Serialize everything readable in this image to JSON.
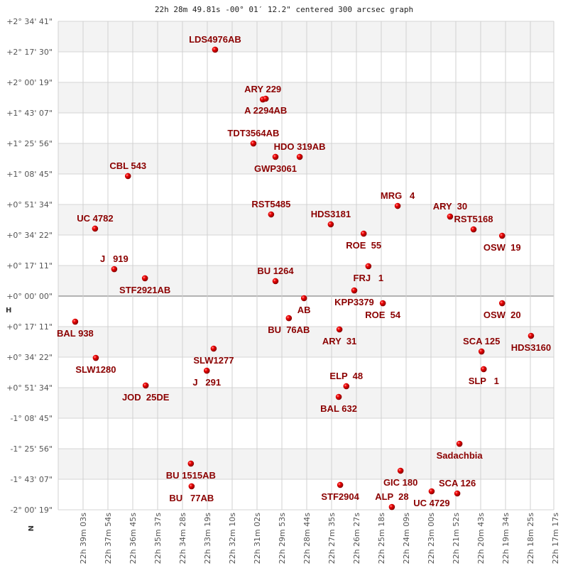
{
  "chart_data": {
    "type": "scatter",
    "title": "22h 28m 49.81s -00° 01′ 12.2\" centered 300 arcsec graph",
    "x_ticks": [
      "22h 39m 03s",
      "22h 37m 54s",
      "22h 36m 45s",
      "22h 35m 37s",
      "22h 34m 28s",
      "22h 33m 19s",
      "22h 32m 10s",
      "22h 31m 02s",
      "22h 29m 53s",
      "22h 28m 44s",
      "22h 27m 35s",
      "22h 26m 27s",
      "22h 25m 18s",
      "22h 24m 09s",
      "22h 23m 00s",
      "22h 21m 52s",
      "22h 20m 43s",
      "22h 19m 34s",
      "22h 18m 25s",
      "22h 17m 17s"
    ],
    "y_ticks": [
      "+2° 34' 41\"",
      "+2° 17' 30\"",
      "+2° 00' 19\"",
      "+1° 43' 07\"",
      "+1° 25' 56\"",
      "+1° 08' 45\"",
      "+0° 51' 34\"",
      "+0° 34' 22\"",
      "+0° 17' 11\"",
      "+0° 00' 00\"",
      "+0° 17' 11\"",
      "+0° 34' 22\"",
      "+0° 51' 34\"",
      "-1° 08' 45\"",
      "-1° 25' 56\"",
      "-1° 43' 07\"",
      "-2° 00' 19\""
    ],
    "grid": true,
    "banded_rows": true,
    "marker_color": "#e00000",
    "label_color": "#8b0000",
    "orientation_marks": [
      "H",
      "N"
    ],
    "stars": [
      {
        "name": "LDS4976AB",
        "ra": "22:32:58",
        "dec": 2.312,
        "label": "above"
      },
      {
        "name": "ARY 229",
        "ra": "22:30:46",
        "dec": 1.845,
        "label": "above"
      },
      {
        "name": "A 2294AB",
        "ra": "22:30:38",
        "dec": 1.852,
        "label": "above"
      },
      {
        "name": "TDT3564AB",
        "ra": "22:31:12",
        "dec": 1.432,
        "label": "above"
      },
      {
        "name": "GWP3061",
        "ra": "22:30:11",
        "dec": 1.306,
        "label": "above"
      },
      {
        "name": "HDO 319AB",
        "ra": "22:29:04",
        "dec": 1.306,
        "label": "above"
      },
      {
        "name": "CBL 543",
        "ra": "22:36:59",
        "dec": 1.126,
        "label": "above"
      },
      {
        "name": "MRG   4",
        "ra": "22:24:33",
        "dec": 0.846,
        "label": "above"
      },
      {
        "name": "UC 4782",
        "ra": "22:38:30",
        "dec": 0.633,
        "label": "above"
      },
      {
        "name": "RST5485",
        "ra": "22:30:23",
        "dec": 0.766,
        "label": "above"
      },
      {
        "name": "HDS3181",
        "ra": "22:27:38",
        "dec": 0.673,
        "label": "above"
      },
      {
        "name": "ROE  55",
        "ra": "22:26:07",
        "dec": 0.586,
        "label": "above"
      },
      {
        "name": "ARY  30",
        "ra": "22:22:08",
        "dec": 0.746,
        "label": "above"
      },
      {
        "name": "RST5168",
        "ra": "22:21:03",
        "dec": 0.626,
        "label": "above"
      },
      {
        "name": "OSW  19",
        "ra": "22:19:44",
        "dec": 0.566,
        "label": "above"
      },
      {
        "name": "FRJ   1",
        "ra": "22:25:54",
        "dec": 0.28,
        "label": "above"
      },
      {
        "name": "J   919",
        "ra": "22:37:37",
        "dec": 0.253,
        "label": "above"
      },
      {
        "name": "STF2921AB",
        "ra": "22:36:12",
        "dec": 0.167,
        "label": "above"
      },
      {
        "name": "BU 1264",
        "ra": "22:30:11",
        "dec": 0.14,
        "label": "above"
      },
      {
        "name": "KPP3379",
        "ra": "22:26:33",
        "dec": 0.053,
        "label": "above"
      },
      {
        "name": "AB",
        "ra": "22:28:52",
        "dec": -0.02,
        "label": "below"
      },
      {
        "name": "ROE  54",
        "ra": "22:25:14",
        "dec": -0.067,
        "label": "below"
      },
      {
        "name": "OSW  20",
        "ra": "22:19:44",
        "dec": -0.067,
        "label": "below"
      },
      {
        "name": "BAL 938",
        "ra": "22:39:25",
        "dec": -0.24,
        "label": "below"
      },
      {
        "name": "BU  76AB",
        "ra": "22:29:34",
        "dec": -0.207,
        "label": "below"
      },
      {
        "name": "ARY  31",
        "ra": "22:27:14",
        "dec": -0.313,
        "label": "below"
      },
      {
        "name": "HDS3160",
        "ra": "22:18:24",
        "dec": -0.373,
        "label": "below"
      },
      {
        "name": "SLW1280",
        "ra": "22:38:28",
        "dec": -0.58,
        "label": "below"
      },
      {
        "name": "SCA 125",
        "ra": "22:20:41",
        "dec": -0.52,
        "label": "below"
      },
      {
        "name": "SLW1277",
        "ra": "22:33:02",
        "dec": -0.493,
        "label": "below"
      },
      {
        "name": "SLP   1",
        "ra": "22:20:35",
        "dec": -0.686,
        "label": "below"
      },
      {
        "name": "J   291",
        "ra": "22:33:21",
        "dec": -0.7,
        "label": "below"
      },
      {
        "name": "JOD  25DE",
        "ra": "22:36:10",
        "dec": -0.839,
        "label": "below"
      },
      {
        "name": "ELP  48",
        "ra": "22:26:55",
        "dec": -0.846,
        "label": "below"
      },
      {
        "name": "BAL 632",
        "ra": "22:27:16",
        "dec": -0.946,
        "label": "below"
      },
      {
        "name": "Sadachbia",
        "ra": "22:21:42",
        "dec": -1.386,
        "label": "below"
      },
      {
        "name": "BU 1515AB",
        "ra": "22:34:05",
        "dec": -1.572,
        "label": "below"
      },
      {
        "name": "GIC 180",
        "ra": "22:24:25",
        "dec": -1.639,
        "label": "below"
      },
      {
        "name": "STF2904",
        "ra": "22:27:12",
        "dec": -1.772,
        "label": "below"
      },
      {
        "name": "BU   77AB",
        "ra": "22:34:03",
        "dec": -1.785,
        "label": "below"
      },
      {
        "name": "UC 4729",
        "ra": "22:22:59",
        "dec": -1.832,
        "label": "below"
      },
      {
        "name": "SCA 126",
        "ra": "22:21:48",
        "dec": -1.852,
        "label": "below"
      },
      {
        "name": "ALP  28",
        "ra": "22:24:49",
        "dec": -1.979,
        "label": "below"
      }
    ]
  }
}
